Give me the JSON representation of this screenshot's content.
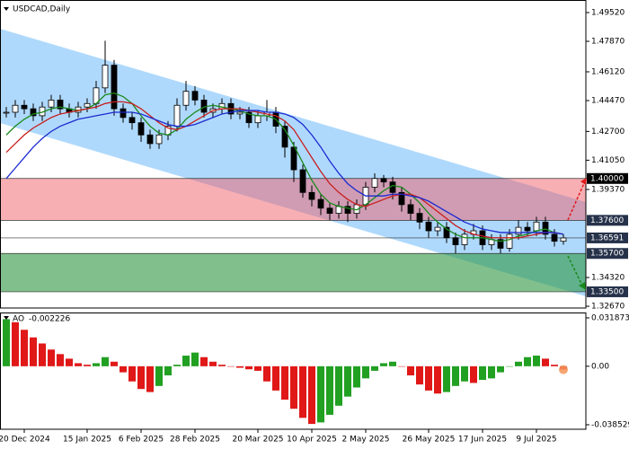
{
  "chart_data": [
    {
      "type": "candlestick",
      "title": "USDCAD,Daily",
      "categories": [
        null,
        null,
        "20 Dec 2024",
        null,
        null,
        null,
        null,
        null,
        null,
        "15 Jan 2025",
        null,
        null,
        null,
        null,
        null,
        "6 Feb 2025",
        null,
        null,
        null,
        null,
        null,
        "28 Feb 2025",
        null,
        null,
        null,
        null,
        null,
        null,
        "20 Mar 2025",
        null,
        null,
        null,
        null,
        null,
        "10 Apr 2025",
        null,
        null,
        null,
        null,
        null,
        "2 May 2025",
        null,
        null,
        null,
        null,
        null,
        null,
        "26 May 2025",
        null,
        null,
        null,
        null,
        null,
        "17 Jun 2025",
        null,
        null,
        null,
        null,
        null,
        "9 Jul 2025",
        null,
        null,
        null
      ],
      "close": [
        1.438,
        1.442,
        1.44,
        1.436,
        1.441,
        1.445,
        1.44,
        1.438,
        1.441,
        1.443,
        1.452,
        1.465,
        1.44,
        1.435,
        1.432,
        1.425,
        1.42,
        1.425,
        1.43,
        1.442,
        1.45,
        1.445,
        1.438,
        1.44,
        1.443,
        1.437,
        1.438,
        1.432,
        1.436,
        1.438,
        1.43,
        1.418,
        1.405,
        1.392,
        1.388,
        1.383,
        1.38,
        1.384,
        1.38,
        1.385,
        1.395,
        1.4,
        1.398,
        1.392,
        1.385,
        1.38,
        1.375,
        1.37,
        1.372,
        1.366,
        1.362,
        1.368,
        1.37,
        1.362,
        1.365,
        1.36,
        1.368,
        1.372,
        1.37,
        1.375,
        1.368,
        1.364,
        1.3659
      ],
      "high": [
        1.441,
        1.445,
        1.445,
        1.443,
        1.444,
        1.448,
        1.448,
        1.443,
        1.444,
        1.446,
        1.456,
        1.479,
        1.468,
        1.443,
        1.438,
        1.435,
        1.428,
        1.428,
        1.433,
        1.446,
        1.456,
        1.453,
        1.448,
        1.443,
        1.446,
        1.446,
        1.441,
        1.441,
        1.439,
        1.445,
        1.441,
        1.433,
        1.421,
        1.408,
        1.396,
        1.391,
        1.386,
        1.387,
        1.387,
        1.388,
        1.398,
        1.403,
        1.402,
        1.401,
        1.395,
        1.388,
        1.383,
        1.378,
        1.375,
        1.375,
        1.369,
        1.371,
        1.374,
        1.373,
        1.368,
        1.368,
        1.371,
        1.376,
        1.375,
        1.378,
        1.378,
        1.371,
        1.368
      ],
      "low": [
        1.435,
        1.435,
        1.437,
        1.433,
        1.433,
        1.438,
        1.437,
        1.435,
        1.435,
        1.438,
        1.44,
        1.449,
        1.436,
        1.432,
        1.428,
        1.421,
        1.417,
        1.417,
        1.422,
        1.427,
        1.439,
        1.442,
        1.435,
        1.435,
        1.437,
        1.434,
        1.434,
        1.429,
        1.429,
        1.433,
        1.426,
        1.412,
        1.398,
        1.389,
        1.384,
        1.379,
        1.376,
        1.377,
        1.375,
        1.377,
        1.382,
        1.392,
        1.395,
        1.388,
        1.381,
        1.376,
        1.371,
        1.366,
        1.367,
        1.363,
        1.357,
        1.359,
        1.365,
        1.359,
        1.359,
        1.357,
        1.358,
        1.365,
        1.367,
        1.367,
        1.365,
        1.361,
        1.362
      ],
      "lines": [
        {
          "color": "#1a8a1a",
          "values": [
            1.425,
            1.43,
            1.434,
            1.437,
            1.438,
            1.44,
            1.441,
            1.44,
            1.439,
            1.44,
            1.443,
            1.448,
            1.449,
            1.447,
            1.443,
            1.436,
            1.43,
            1.426,
            1.425,
            1.428,
            1.434,
            1.438,
            1.441,
            1.442,
            1.441,
            1.44,
            1.439,
            1.437,
            1.436,
            1.436,
            1.434,
            1.428,
            1.419,
            1.409,
            1.399,
            1.391,
            1.386,
            1.384,
            1.383,
            1.382,
            1.385,
            1.389,
            1.393,
            1.396,
            1.395,
            1.391,
            1.386,
            1.38,
            1.375,
            1.371,
            1.368,
            1.366,
            1.366,
            1.366,
            1.365,
            1.364,
            1.365,
            1.367,
            1.368,
            1.37,
            1.371,
            1.369,
            1.368
          ]
        },
        {
          "color": "#c81e1e",
          "values": [
            1.415,
            1.42,
            1.425,
            1.429,
            1.432,
            1.435,
            1.437,
            1.438,
            1.439,
            1.44,
            1.441,
            1.443,
            1.444,
            1.444,
            1.443,
            1.44,
            1.436,
            1.432,
            1.429,
            1.428,
            1.43,
            1.433,
            1.436,
            1.439,
            1.44,
            1.44,
            1.44,
            1.439,
            1.438,
            1.437,
            1.436,
            1.433,
            1.428,
            1.42,
            1.412,
            1.404,
            1.397,
            1.392,
            1.388,
            1.385,
            1.384,
            1.386,
            1.388,
            1.39,
            1.391,
            1.391,
            1.389,
            1.385,
            1.381,
            1.377,
            1.373,
            1.37,
            1.368,
            1.367,
            1.366,
            1.366,
            1.366,
            1.366,
            1.367,
            1.368,
            1.369,
            1.369,
            1.368
          ]
        },
        {
          "color": "#1c2ad0",
          "values": [
            1.4,
            1.406,
            1.412,
            1.418,
            1.423,
            1.427,
            1.43,
            1.432,
            1.434,
            1.435,
            1.436,
            1.437,
            1.438,
            1.438,
            1.438,
            1.437,
            1.435,
            1.433,
            1.431,
            1.43,
            1.43,
            1.431,
            1.433,
            1.435,
            1.437,
            1.438,
            1.439,
            1.439,
            1.439,
            1.438,
            1.438,
            1.437,
            1.435,
            1.431,
            1.425,
            1.418,
            1.41,
            1.403,
            1.397,
            1.393,
            1.39,
            1.39,
            1.39,
            1.391,
            1.391,
            1.39,
            1.389,
            1.387,
            1.384,
            1.381,
            1.378,
            1.375,
            1.373,
            1.371,
            1.37,
            1.369,
            1.369,
            1.369,
            1.369,
            1.369,
            1.369,
            1.369,
            1.368
          ]
        }
      ],
      "channel": {
        "upper": [
          1.4859,
          1.3865
        ],
        "lower": [
          1.4318,
          1.3324
        ],
        "color": "rgba(110,185,250,0.55)"
      },
      "zones": [
        {
          "from": 1.4,
          "to": 1.376,
          "color": "rgba(240,95,105,0.5)"
        },
        {
          "from": 1.357,
          "to": 1.335,
          "color": "rgba(45,150,65,0.6)"
        }
      ],
      "levels": [
        {
          "value": 1.4,
          "label": "1.40000"
        },
        {
          "value": 1.376,
          "label": "1.37600"
        },
        {
          "value": 1.36591,
          "label": "1.36591"
        },
        {
          "value": 1.357,
          "label": "1.35700"
        },
        {
          "value": 1.335,
          "label": "1.33500"
        }
      ],
      "ylim": [
        1.3257,
        1.5024
      ],
      "yticks": [
        {
          "value": 1.4952,
          "label": "1.49520"
        },
        {
          "value": 1.4787,
          "label": "1.47870"
        },
        {
          "value": 1.4612,
          "label": "1.46120"
        },
        {
          "value": 1.4447,
          "label": "1.44470"
        },
        {
          "value": 1.427,
          "label": "1.42700"
        },
        {
          "value": 1.4105,
          "label": "1.41050"
        },
        {
          "value": 1.3937,
          "label": "1.39370"
        },
        {
          "value": 1.3432,
          "label": "1.34320"
        },
        {
          "value": 1.3267,
          "label": "1.32670"
        }
      ]
    },
    {
      "type": "bar",
      "title": "AO",
      "values": [
        0.031,
        0.029,
        0.024,
        0.019,
        0.015,
        0.011,
        0.008,
        0.005,
        0.002,
        0.001,
        0.002,
        0.006,
        0.003,
        -0.004,
        -0.01,
        -0.015,
        -0.017,
        -0.013,
        -0.006,
        0.001,
        0.007,
        0.009,
        0.006,
        0.003,
        0.001,
        0.0,
        -0.001,
        -0.002,
        -0.003,
        -0.01,
        -0.016,
        -0.022,
        -0.028,
        -0.034,
        -0.038,
        -0.037,
        -0.032,
        -0.026,
        -0.02,
        -0.014,
        -0.008,
        -0.003,
        0.002,
        0.003,
        0.0,
        -0.006,
        -0.012,
        -0.016,
        -0.018,
        -0.017,
        -0.013,
        -0.01,
        -0.011,
        -0.009,
        -0.008,
        -0.004,
        0.0,
        0.003,
        0.006,
        0.007,
        0.005,
        0.001,
        -0.002226
      ],
      "colors": {
        "up": "#22a022",
        "down": "#e01818"
      },
      "ylim": [
        -0.0415,
        0.0354
      ],
      "yticks": [
        0.031873,
        {
          "value": 0,
          "label": "0.00"
        },
        -0.038529
      ]
    }
  ]
}
